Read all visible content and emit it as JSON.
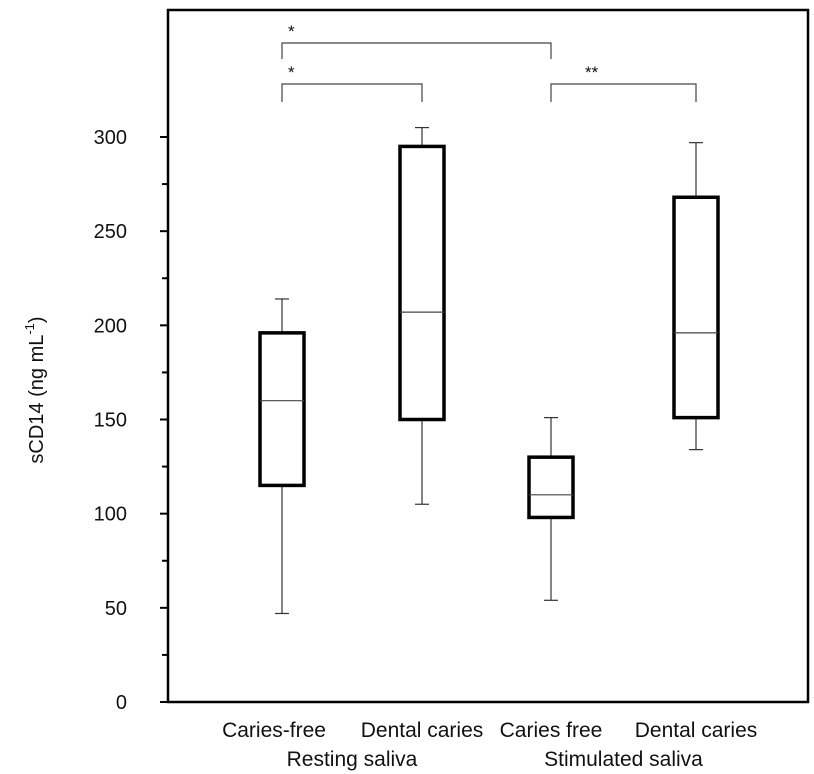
{
  "chart_data": {
    "type": "box",
    "ylabel": "sCD14 (ng mL",
    "ylabel_superscript": "-1",
    "ylabel_close": ")",
    "ylim": [
      0,
      360
    ],
    "yticks": [
      0,
      50,
      100,
      150,
      200,
      250,
      300
    ],
    "categories": [
      "Caries-free",
      "Dental caries",
      "Caries free",
      "Dental caries"
    ],
    "groups": [
      {
        "label": "Resting saliva",
        "members": [
          0,
          1
        ]
      },
      {
        "label": "Stimulated saliva",
        "members": [
          2,
          3
        ]
      }
    ],
    "boxes": [
      {
        "category": "Caries-free",
        "group": "Resting saliva",
        "min": 47,
        "q1": 115,
        "median": 160,
        "q3": 196,
        "max": 214
      },
      {
        "category": "Dental caries",
        "group": "Resting saliva",
        "min": 105,
        "q1": 150,
        "median": 207,
        "q3": 295,
        "max": 305
      },
      {
        "category": "Caries free",
        "group": "Stimulated saliva",
        "min": 54,
        "q1": 98,
        "median": 110,
        "q3": 130,
        "max": 151
      },
      {
        "category": "Dental caries",
        "group": "Stimulated saliva",
        "min": 134,
        "q1": 151,
        "median": 196,
        "q3": 268,
        "max": 297
      }
    ],
    "significance": [
      {
        "from": 0,
        "to": 2,
        "label": "*",
        "level": 2
      },
      {
        "from": 0,
        "to": 1,
        "label": "*",
        "level": 1
      },
      {
        "from": 2,
        "to": 3,
        "label": "**",
        "level": 1
      }
    ],
    "grid": false,
    "legend": "none"
  }
}
